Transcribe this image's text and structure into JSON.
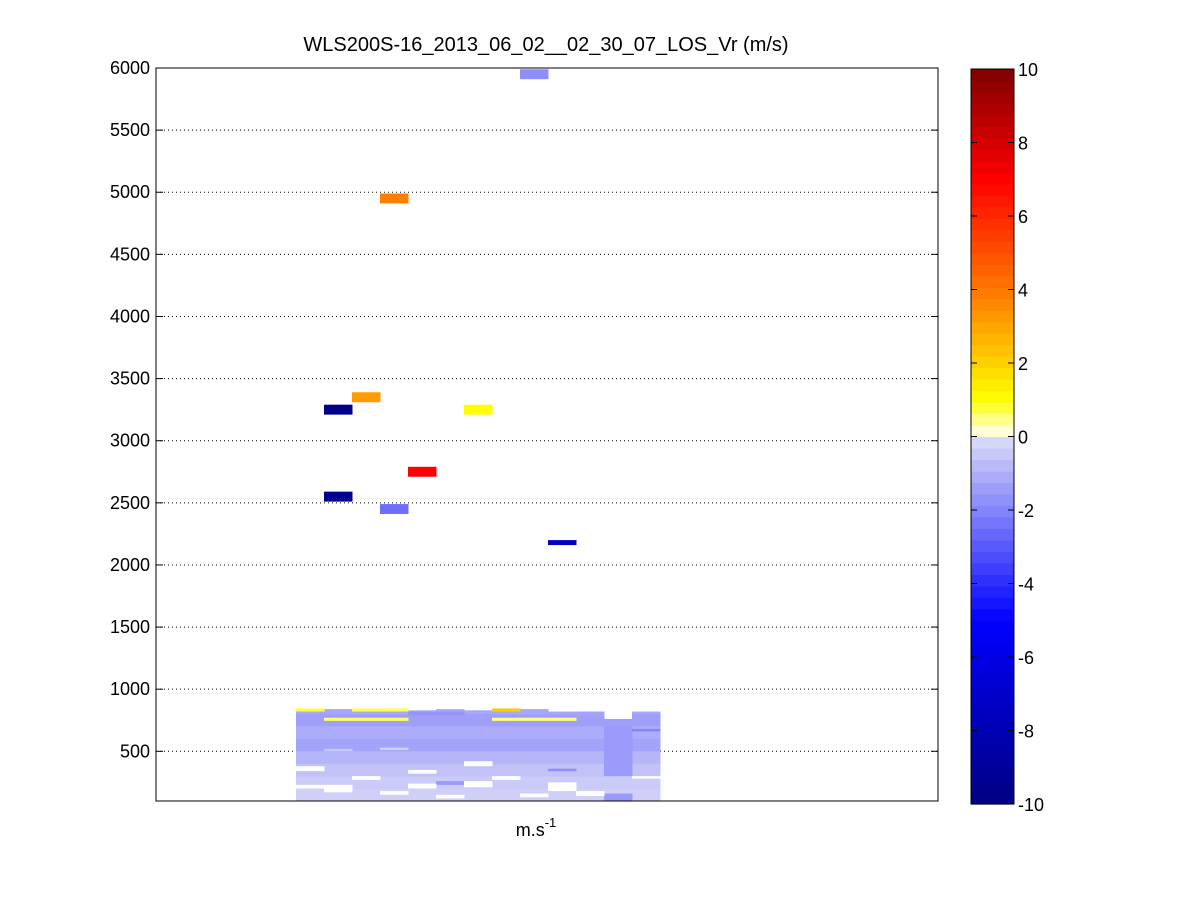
{
  "chart_data": {
    "type": "heatmap",
    "title": "WLS200S-16_2013_06_02__02_30_07_LOS_Vr (m/s)",
    "xlabel": "m.s",
    "xlabel_superscript": "-1",
    "ylabel": "",
    "ylim": [
      100,
      6000
    ],
    "yticks": [
      500,
      1000,
      1500,
      2000,
      2500,
      3000,
      3500,
      4000,
      4500,
      5000,
      5500,
      6000
    ],
    "ygrid": "dotted",
    "clim": [
      -10,
      10
    ],
    "colorbar_ticks": [
      -10,
      -8,
      -6,
      -4,
      -2,
      0,
      2,
      4,
      6,
      8,
      10
    ],
    "colormap": "blue-white-yellow-red",
    "colormap_stops": [
      {
        "v": -10,
        "color": "#000080"
      },
      {
        "v": -5,
        "color": "#0000ff"
      },
      {
        "v": -0.01,
        "color": "#dcdcf8"
      },
      {
        "v": 0,
        "color": "#ffffff"
      },
      {
        "v": 0.5,
        "color": "#ffff80"
      },
      {
        "v": 1,
        "color": "#ffff00"
      },
      {
        "v": 4,
        "color": "#ff7700"
      },
      {
        "v": 7,
        "color": "#ff0000"
      },
      {
        "v": 10,
        "color": "#800000"
      }
    ],
    "columns": 14,
    "cells": [
      {
        "col": 8,
        "y0": 5910,
        "y1": 5990,
        "v": -1.8
      },
      {
        "col": 3,
        "y0": 4910,
        "y1": 4990,
        "v": 3.8
      },
      {
        "col": 2,
        "y0": 3310,
        "y1": 3390,
        "v": 3.2
      },
      {
        "col": 1,
        "y0": 3210,
        "y1": 3290,
        "v": -9.6
      },
      {
        "col": 6,
        "y0": 3210,
        "y1": 3290,
        "v": 1.0
      },
      {
        "col": 4,
        "y0": 2710,
        "y1": 2790,
        "v": 7.0
      },
      {
        "col": 1,
        "y0": 2510,
        "y1": 2590,
        "v": -9.6
      },
      {
        "col": 3,
        "y0": 2410,
        "y1": 2490,
        "v": -2.5
      },
      {
        "col": 9,
        "y0": 2160,
        "y1": 2200,
        "v": -7.5
      }
    ],
    "low_layer": {
      "col_from": 0,
      "col_to": 12,
      "y_bottom": 100,
      "y_tops": [
        840,
        840,
        820,
        840,
        830,
        840,
        830,
        820,
        840,
        820,
        820,
        760,
        820
      ],
      "base_value": -1.2,
      "bands": [
        {
          "y0": 700,
          "y1": 800,
          "v": -1.4
        },
        {
          "y0": 600,
          "y1": 700,
          "v": -1.1
        },
        {
          "y0": 500,
          "y1": 600,
          "v": -1.3
        },
        {
          "y0": 400,
          "y1": 500,
          "v": -0.9
        },
        {
          "y0": 300,
          "y1": 400,
          "v": -0.6
        },
        {
          "y0": 200,
          "y1": 300,
          "v": -0.4
        },
        {
          "y0": 100,
          "y1": 200,
          "v": -0.3
        }
      ],
      "accents": [
        {
          "col": 0,
          "y0": 820,
          "y1": 845,
          "v": 0.8
        },
        {
          "col": 2,
          "y0": 820,
          "y1": 845,
          "v": 0.7
        },
        {
          "col": 3,
          "y0": 820,
          "y1": 845,
          "v": 0.7
        },
        {
          "col": 1,
          "y0": 745,
          "y1": 770,
          "v": 0.6
        },
        {
          "col": 2,
          "y0": 745,
          "y1": 770,
          "v": 0.6
        },
        {
          "col": 3,
          "y0": 745,
          "y1": 770,
          "v": 0.6
        },
        {
          "col": 7,
          "y0": 820,
          "y1": 845,
          "v": 2.2
        },
        {
          "col": 7,
          "y0": 745,
          "y1": 770,
          "v": 0.5
        },
        {
          "col": 8,
          "y0": 745,
          "y1": 770,
          "v": 0.5
        },
        {
          "col": 9,
          "y0": 745,
          "y1": 770,
          "v": 0.5
        },
        {
          "col": 4,
          "y0": 790,
          "y1": 820,
          "v": -1.6
        },
        {
          "col": 5,
          "y0": 790,
          "y1": 820,
          "v": -1.6
        },
        {
          "col": 10,
          "y0": 780,
          "y1": 820,
          "v": -1.3
        },
        {
          "col": 11,
          "y0": 300,
          "y1": 700,
          "v": -1.5
        },
        {
          "col": 12,
          "y0": 660,
          "y1": 680,
          "v": -2.0
        },
        {
          "col": 9,
          "y0": 340,
          "y1": 360,
          "v": -1.8
        },
        {
          "col": 1,
          "y0": 500,
          "y1": 520,
          "v": -0.5
        },
        {
          "col": 3,
          "y0": 510,
          "y1": 530,
          "v": -0.3
        },
        {
          "col": 5,
          "y0": 230,
          "y1": 260,
          "v": -1.5
        },
        {
          "col": 11,
          "y0": 100,
          "y1": 160,
          "v": -1.5
        }
      ],
      "gaps": [
        {
          "col": 0,
          "y0": 340,
          "y1": 380
        },
        {
          "col": 1,
          "y0": 170,
          "y1": 230
        },
        {
          "col": 2,
          "y0": 270,
          "y1": 300
        },
        {
          "col": 3,
          "y0": 150,
          "y1": 180
        },
        {
          "col": 4,
          "y0": 200,
          "y1": 240
        },
        {
          "col": 5,
          "y0": 120,
          "y1": 150
        },
        {
          "col": 6,
          "y0": 210,
          "y1": 260
        },
        {
          "col": 7,
          "y0": 270,
          "y1": 300
        },
        {
          "col": 8,
          "y0": 130,
          "y1": 160
        },
        {
          "col": 9,
          "y0": 180,
          "y1": 250
        },
        {
          "col": 10,
          "y0": 140,
          "y1": 180
        },
        {
          "col": 12,
          "y0": 280,
          "y1": 300
        },
        {
          "col": 0,
          "y0": 200,
          "y1": 230
        },
        {
          "col": 6,
          "y0": 380,
          "y1": 420
        },
        {
          "col": 4,
          "y0": 320,
          "y1": 350
        }
      ]
    }
  }
}
